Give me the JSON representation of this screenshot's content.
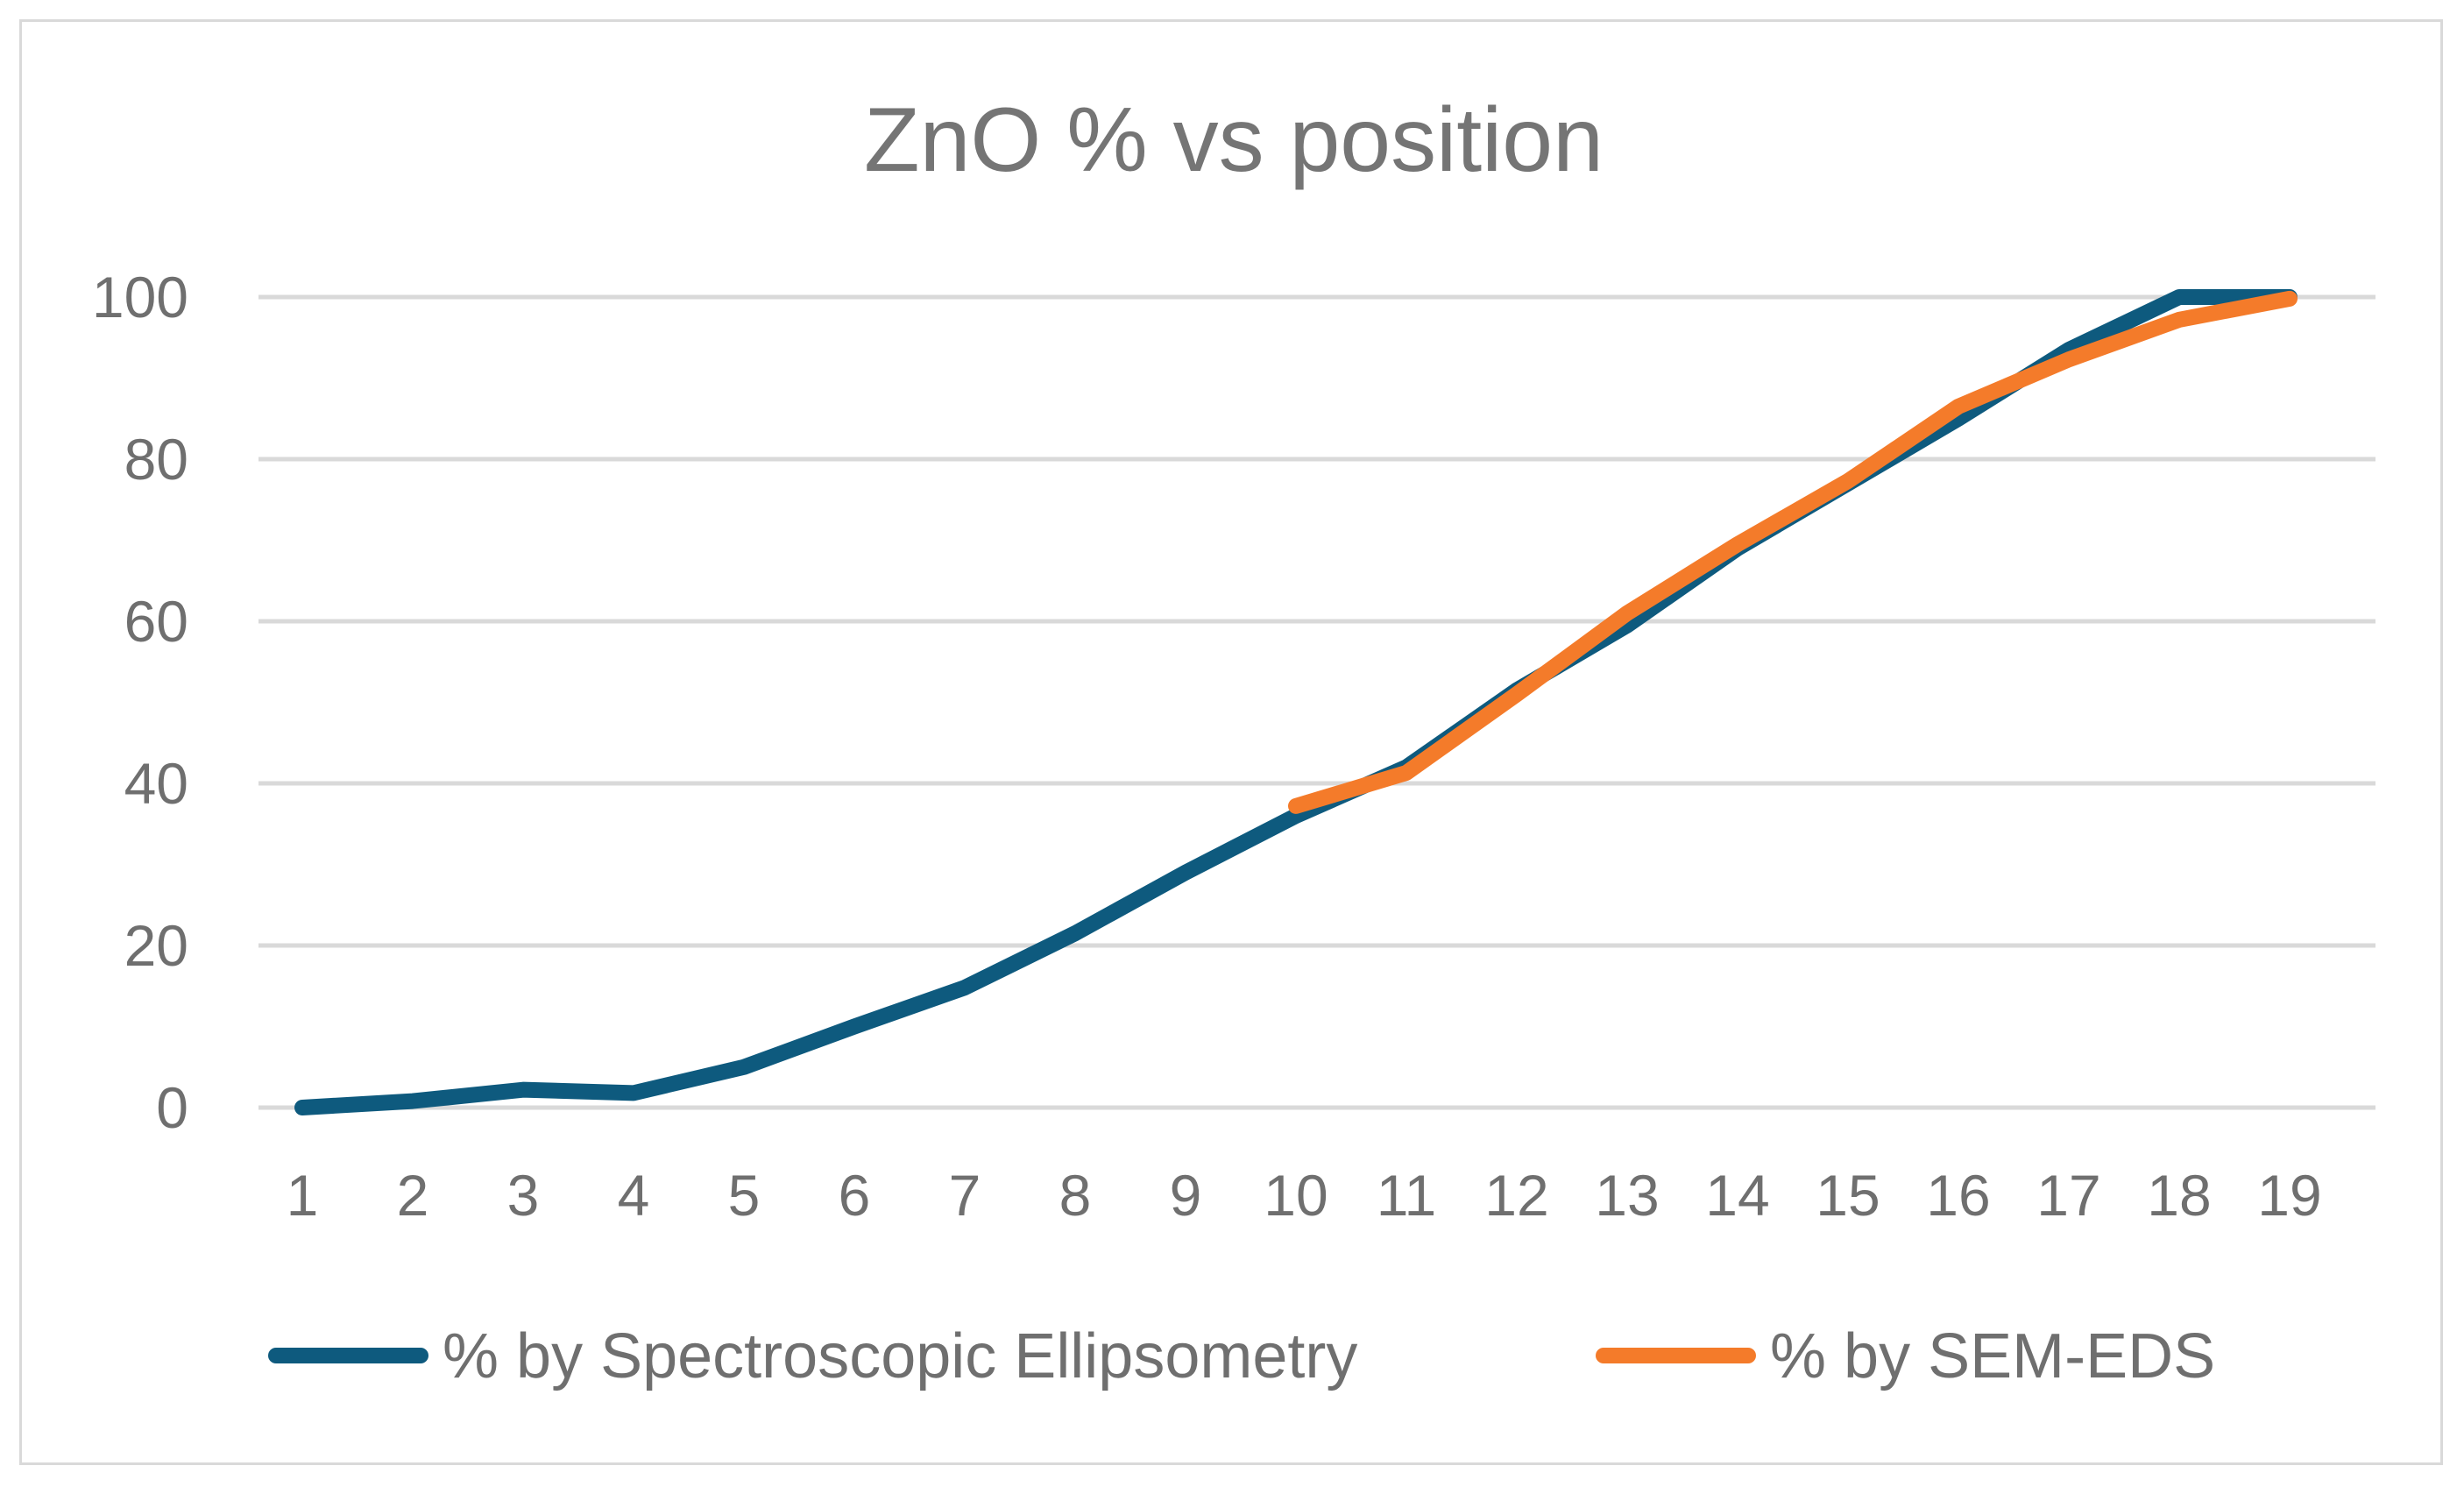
{
  "chart_data": {
    "type": "line",
    "title": "ZnO % vs position",
    "xlabel": "",
    "ylabel": "",
    "categories": [
      "1",
      "2",
      "3",
      "4",
      "5",
      "6",
      "7",
      "8",
      "9",
      "10",
      "11",
      "12",
      "13",
      "14",
      "15",
      "16",
      "17",
      "18",
      "19"
    ],
    "ylim": [
      0,
      100
    ],
    "yticks": [
      0,
      20,
      40,
      60,
      80,
      100
    ],
    "yticks_labels": [
      "0",
      "20",
      "40",
      "60",
      "80",
      "100"
    ],
    "grid": true,
    "legend_position": "bottom",
    "series": [
      {
        "name": "% by Spectroscopic Ellipsometry",
        "color": "#0e5a7e",
        "values": [
          0,
          0.8,
          2.2,
          1.8,
          5,
          10,
          14.8,
          21.5,
          29,
          36,
          42,
          51.5,
          59.5,
          69,
          77,
          85,
          93.5,
          100,
          100
        ]
      },
      {
        "name": "% by SEM-EDS",
        "color": "#f47b2a",
        "values": [
          null,
          null,
          null,
          null,
          null,
          null,
          null,
          null,
          null,
          37.2,
          41.3,
          51,
          61,
          69.5,
          77.3,
          86.5,
          92.3,
          97.2,
          99.8
        ]
      }
    ]
  }
}
